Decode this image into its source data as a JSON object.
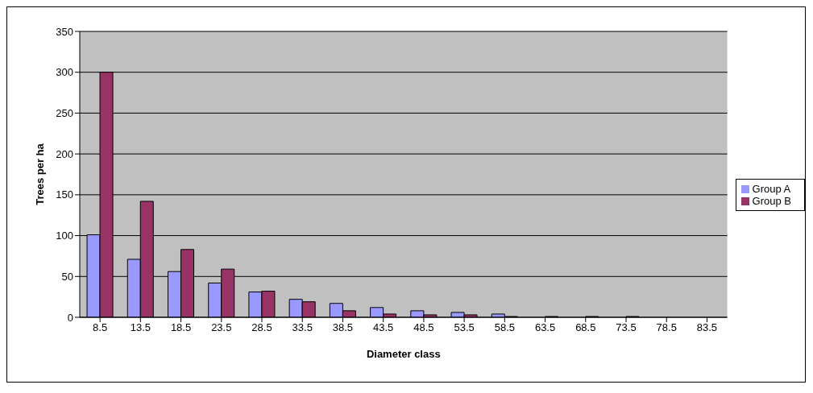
{
  "chart_data": {
    "type": "bar",
    "xlabel": "Diameter class",
    "ylabel": "Trees per ha",
    "categories": [
      "8.5",
      "13.5",
      "18.5",
      "23.5",
      "28.5",
      "33.5",
      "38.5",
      "43.5",
      "48.5",
      "53.5",
      "58.5",
      "63.5",
      "68.5",
      "73.5",
      "78.5",
      "83.5"
    ],
    "series": [
      {
        "name": "Group A",
        "color": "#9999ff",
        "values": [
          101,
          71,
          56,
          42,
          31,
          22,
          17,
          12,
          8,
          6,
          4,
          0,
          0,
          0,
          0,
          0
        ]
      },
      {
        "name": "Group B",
        "color": "#993366",
        "values": [
          300,
          142,
          83,
          59,
          32,
          19,
          8,
          4,
          3,
          3,
          1,
          1,
          1,
          1,
          0,
          0
        ]
      }
    ],
    "ylim": [
      0,
      350
    ],
    "yticks": [
      0,
      50,
      100,
      150,
      200,
      250,
      300,
      350
    ],
    "grid": "y",
    "legend": "right"
  }
}
